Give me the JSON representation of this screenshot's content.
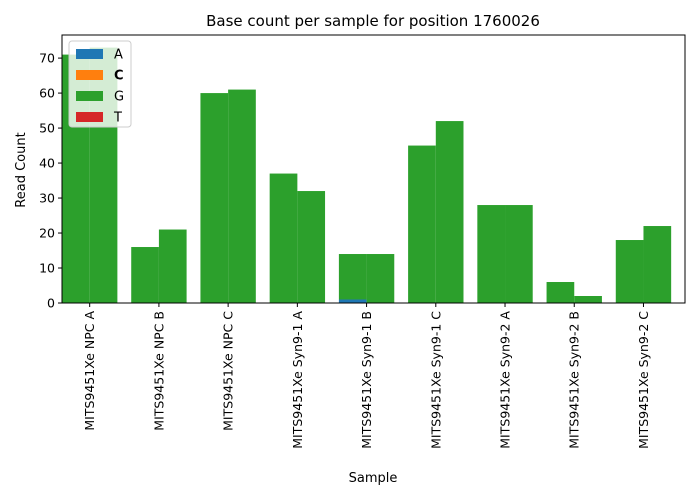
{
  "chart_data": {
    "type": "bar",
    "title": "Base count per sample for position 1760026",
    "xlabel": "Sample",
    "ylabel": "Read Count",
    "ylim": [
      0,
      76.6
    ],
    "yticks": [
      0,
      10,
      20,
      30,
      40,
      50,
      60,
      70
    ],
    "grid": false,
    "stacked": true,
    "bars_per_category": 2,
    "categories": [
      "MITS9451Xe NPC A",
      "MITS9451Xe NPC B",
      "MITS9451Xe NPC C",
      "MITS9451Xe Syn9-1 A",
      "MITS9451Xe Syn9-1 B",
      "MITS9451Xe Syn9-1 C",
      "MITS9451Xe Syn9-2 A",
      "MITS9451Xe Syn9-2 B",
      "MITS9451Xe Syn9-2 C"
    ],
    "series": [
      {
        "name": "A",
        "color": "#1f77b4",
        "values": [
          [
            0,
            0
          ],
          [
            0,
            0
          ],
          [
            0,
            0
          ],
          [
            0,
            0
          ],
          [
            1,
            0
          ],
          [
            0,
            0
          ],
          [
            0,
            0
          ],
          [
            0,
            0
          ],
          [
            0,
            0
          ]
        ]
      },
      {
        "name": "C",
        "color": "#ff7f0e",
        "values": [
          [
            0,
            0
          ],
          [
            0,
            0
          ],
          [
            0,
            0
          ],
          [
            0,
            0
          ],
          [
            0,
            0
          ],
          [
            0,
            0
          ],
          [
            0,
            0
          ],
          [
            0,
            0
          ],
          [
            0,
            0
          ]
        ]
      },
      {
        "name": "G",
        "color": "#2ca02c",
        "values": [
          [
            71,
            73
          ],
          [
            16,
            21
          ],
          [
            60,
            61
          ],
          [
            37,
            32
          ],
          [
            13,
            14
          ],
          [
            45,
            52
          ],
          [
            28,
            28
          ],
          [
            6,
            2
          ],
          [
            18,
            22
          ]
        ]
      },
      {
        "name": "T",
        "color": "#d62728",
        "values": [
          [
            0,
            0
          ],
          [
            0,
            0
          ],
          [
            0,
            0
          ],
          [
            0,
            0
          ],
          [
            0,
            0
          ],
          [
            0,
            0
          ],
          [
            0,
            0
          ],
          [
            0,
            0
          ],
          [
            0,
            0
          ]
        ]
      }
    ],
    "legend": {
      "placement": "top-left",
      "bold_entries": [
        "C"
      ]
    }
  }
}
